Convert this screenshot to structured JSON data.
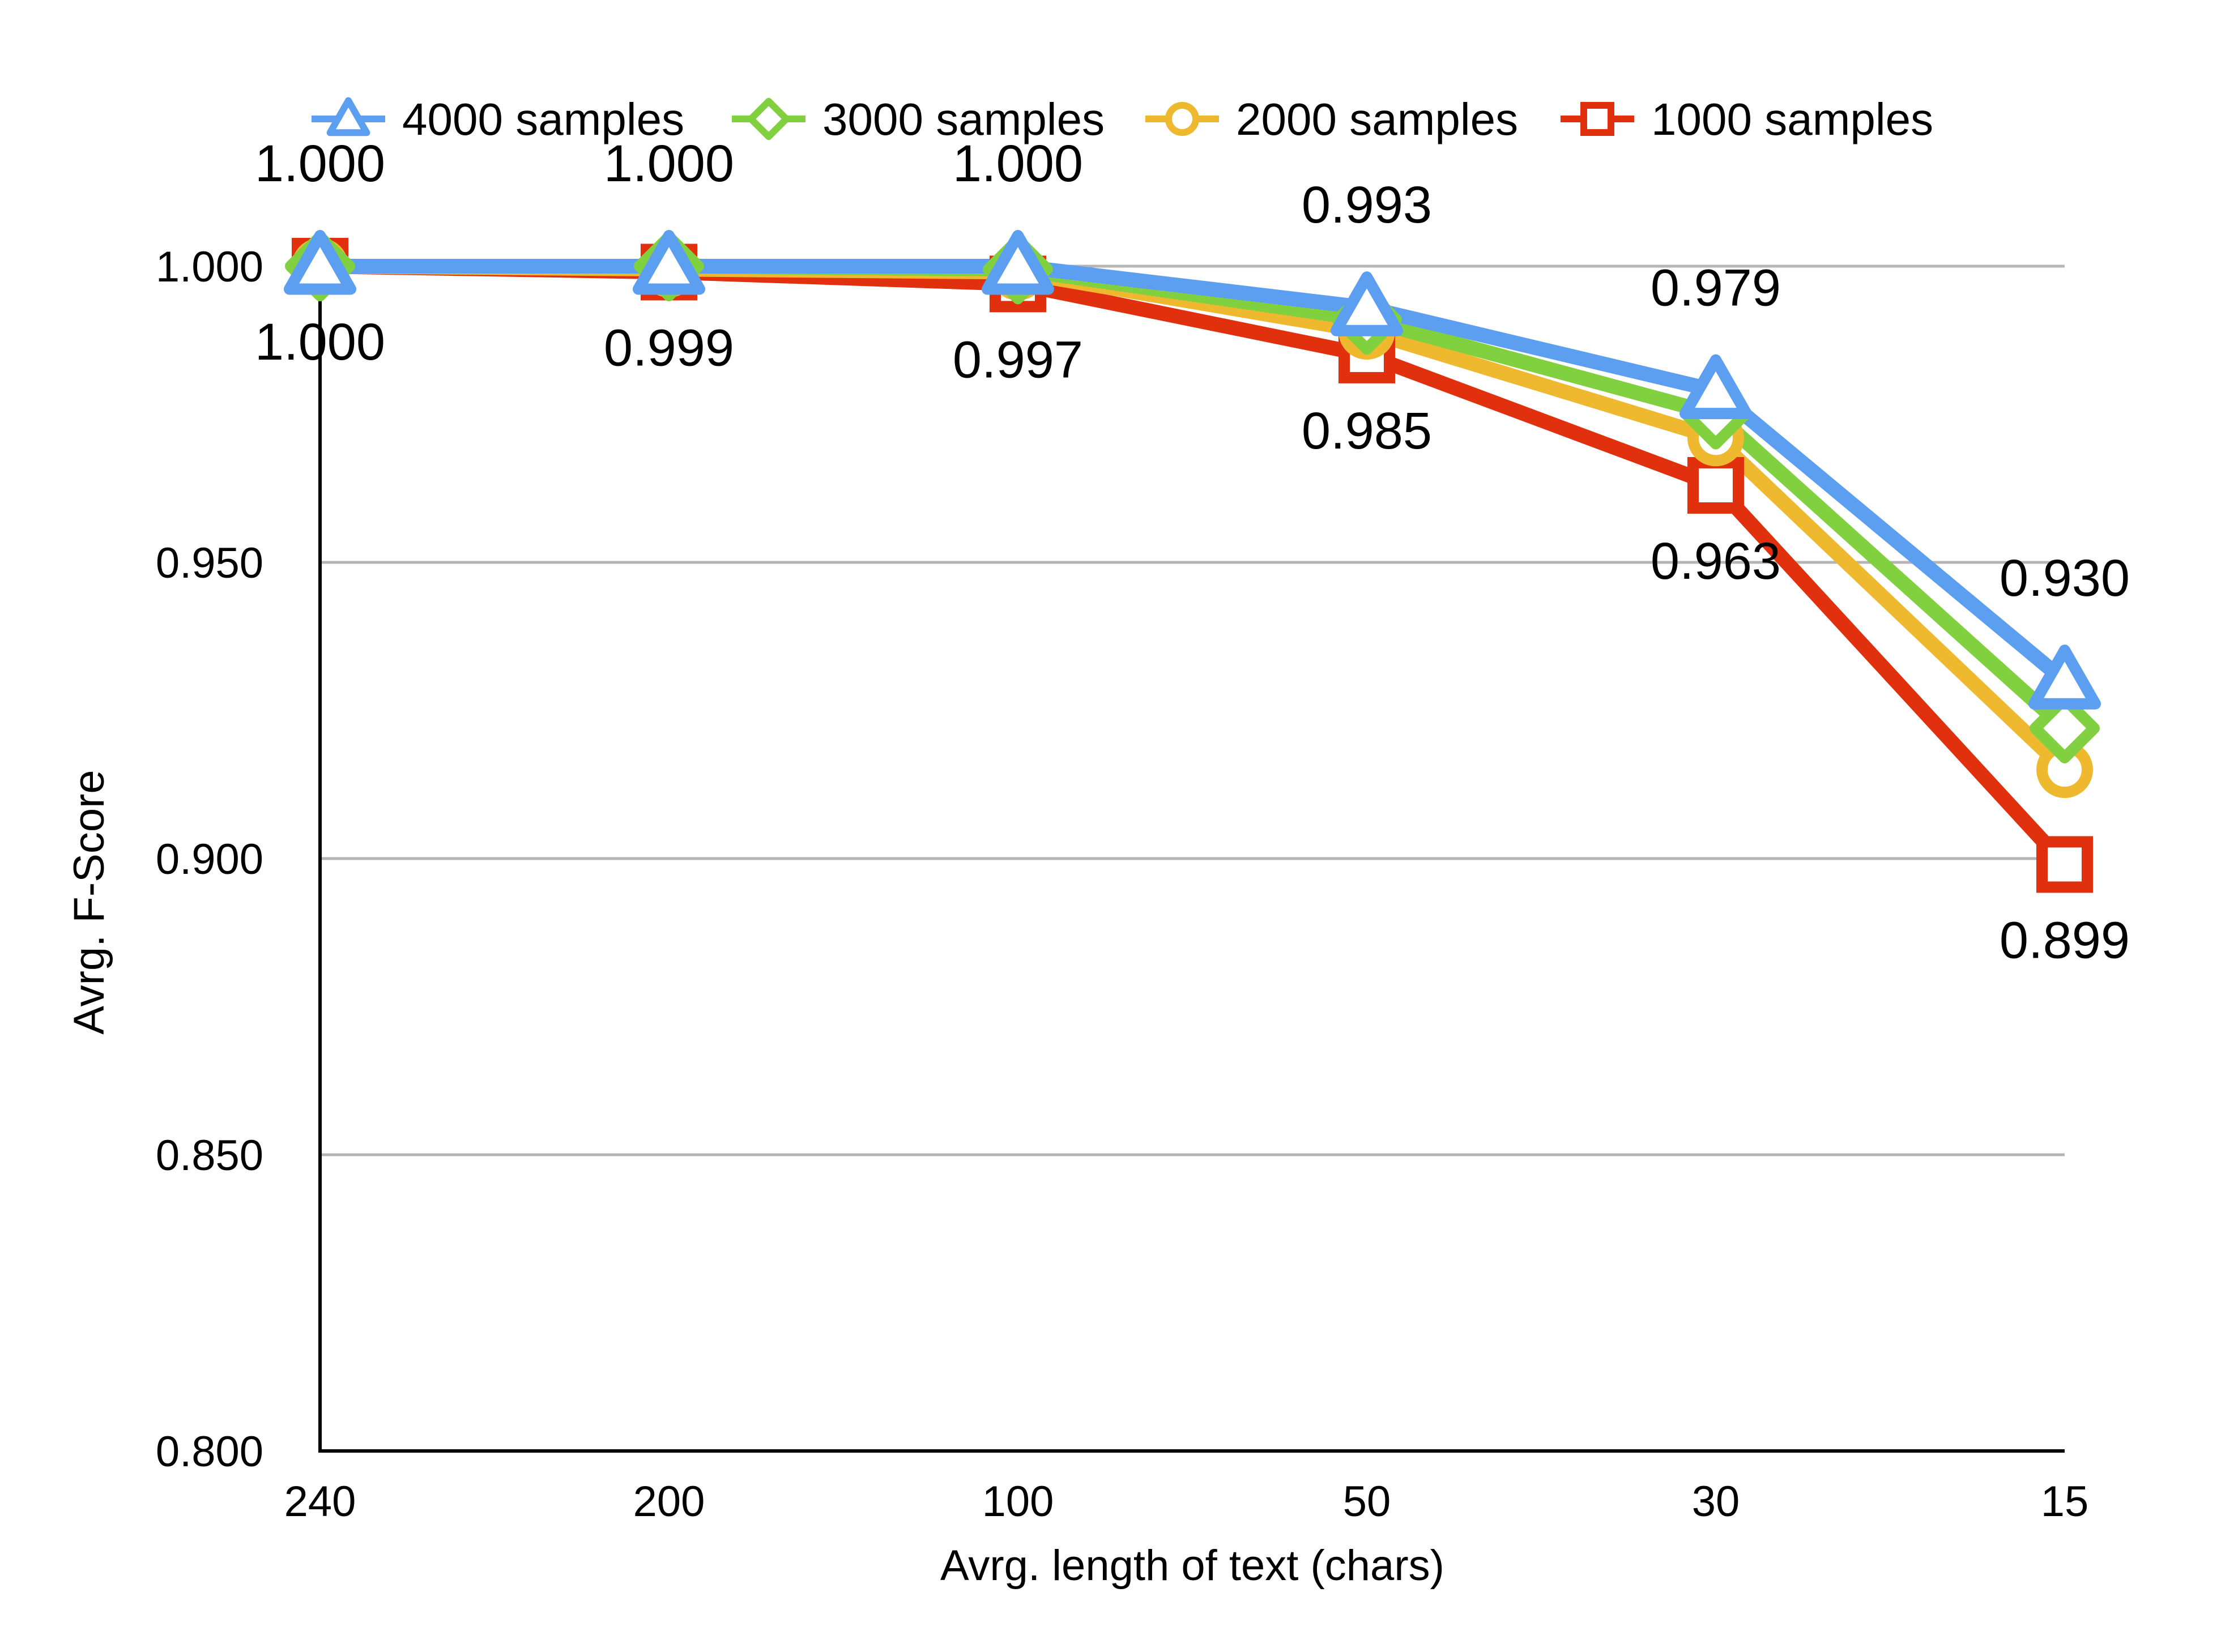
{
  "chart_data": {
    "type": "line",
    "title": "",
    "xlabel": "Avrg. length of text (chars)",
    "ylabel": "Avrg. F-Score",
    "categories": [
      "240",
      "200",
      "100",
      "50",
      "30",
      "15"
    ],
    "ylim": [
      0.8,
      1.0
    ],
    "yticks": [
      1.0,
      0.95,
      0.9,
      0.85,
      0.8
    ],
    "ytick_labels": [
      "1.000",
      "0.950",
      "0.900",
      "0.850",
      "0.800"
    ],
    "grid": true,
    "legend_position": "top",
    "series": [
      {
        "name": "1000 samples",
        "color": "#e0300e",
        "marker": "square",
        "values": [
          1.0,
          0.999,
          0.997,
          0.985,
          0.963,
          0.899
        ]
      },
      {
        "name": "2000 samples",
        "color": "#eeb82f",
        "marker": "circle",
        "values": [
          1.0,
          0.9995,
          0.999,
          0.989,
          0.971,
          0.915
        ]
      },
      {
        "name": "3000 samples",
        "color": "#80d040",
        "marker": "diamond",
        "values": [
          1.0,
          1.0,
          0.9995,
          0.991,
          0.975,
          0.922
        ]
      },
      {
        "name": "4000 samples",
        "color": "#5c9ef0",
        "marker": "triangle",
        "values": [
          1.0,
          1.0,
          1.0,
          0.993,
          0.979,
          0.93
        ]
      }
    ],
    "legend_order": [
      "4000 samples",
      "3000 samples",
      "2000 samples",
      "1000 samples"
    ],
    "data_labels_top": [
      "1.000",
      "1.000",
      "1.000",
      "0.993",
      "0.979",
      "0.930"
    ],
    "data_labels_bottom": [
      "1.000",
      "0.999",
      "0.997",
      "0.985",
      "0.963",
      "0.899"
    ]
  }
}
